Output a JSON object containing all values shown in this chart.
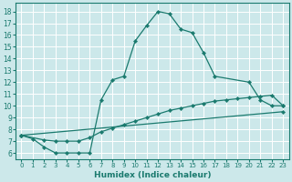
{
  "xlabel": "Humidex (Indice chaleur)",
  "bg_color": "#cce8ea",
  "grid_color": "#ffffff",
  "line_color": "#1a7a6e",
  "xlim": [
    -0.5,
    23.5
  ],
  "ylim": [
    5.5,
    18.7
  ],
  "yticks": [
    6,
    7,
    8,
    9,
    10,
    11,
    12,
    13,
    14,
    15,
    16,
    17,
    18
  ],
  "xticks": [
    0,
    1,
    2,
    3,
    4,
    5,
    6,
    7,
    8,
    9,
    10,
    11,
    12,
    13,
    14,
    15,
    16,
    17,
    18,
    19,
    20,
    21,
    22,
    23
  ],
  "line1_x": [
    0,
    1,
    2,
    3,
    4,
    5,
    6,
    7,
    8,
    9,
    10,
    11,
    12,
    13,
    14,
    15,
    16,
    17,
    20,
    21,
    22,
    23
  ],
  "line1_y": [
    7.5,
    7.2,
    6.5,
    6.0,
    6.0,
    6.0,
    6.0,
    10.5,
    12.2,
    12.5,
    15.5,
    16.8,
    18.0,
    17.8,
    16.5,
    16.2,
    14.5,
    12.5,
    12.0,
    10.5,
    10.0,
    10.0
  ],
  "line2_x": [
    0,
    2,
    3,
    4,
    5,
    6,
    7,
    8,
    9,
    10,
    11,
    12,
    13,
    14,
    15,
    16,
    17,
    18,
    19,
    20,
    21,
    22,
    23
  ],
  "line2_y": [
    7.5,
    7.1,
    7.0,
    7.0,
    7.0,
    7.3,
    7.8,
    8.1,
    8.4,
    8.7,
    9.0,
    9.3,
    9.6,
    9.8,
    10.0,
    10.2,
    10.4,
    10.5,
    10.6,
    10.7,
    10.8,
    10.9,
    10.0
  ],
  "line3_x": [
    0,
    23
  ],
  "line3_y": [
    7.5,
    9.5
  ]
}
